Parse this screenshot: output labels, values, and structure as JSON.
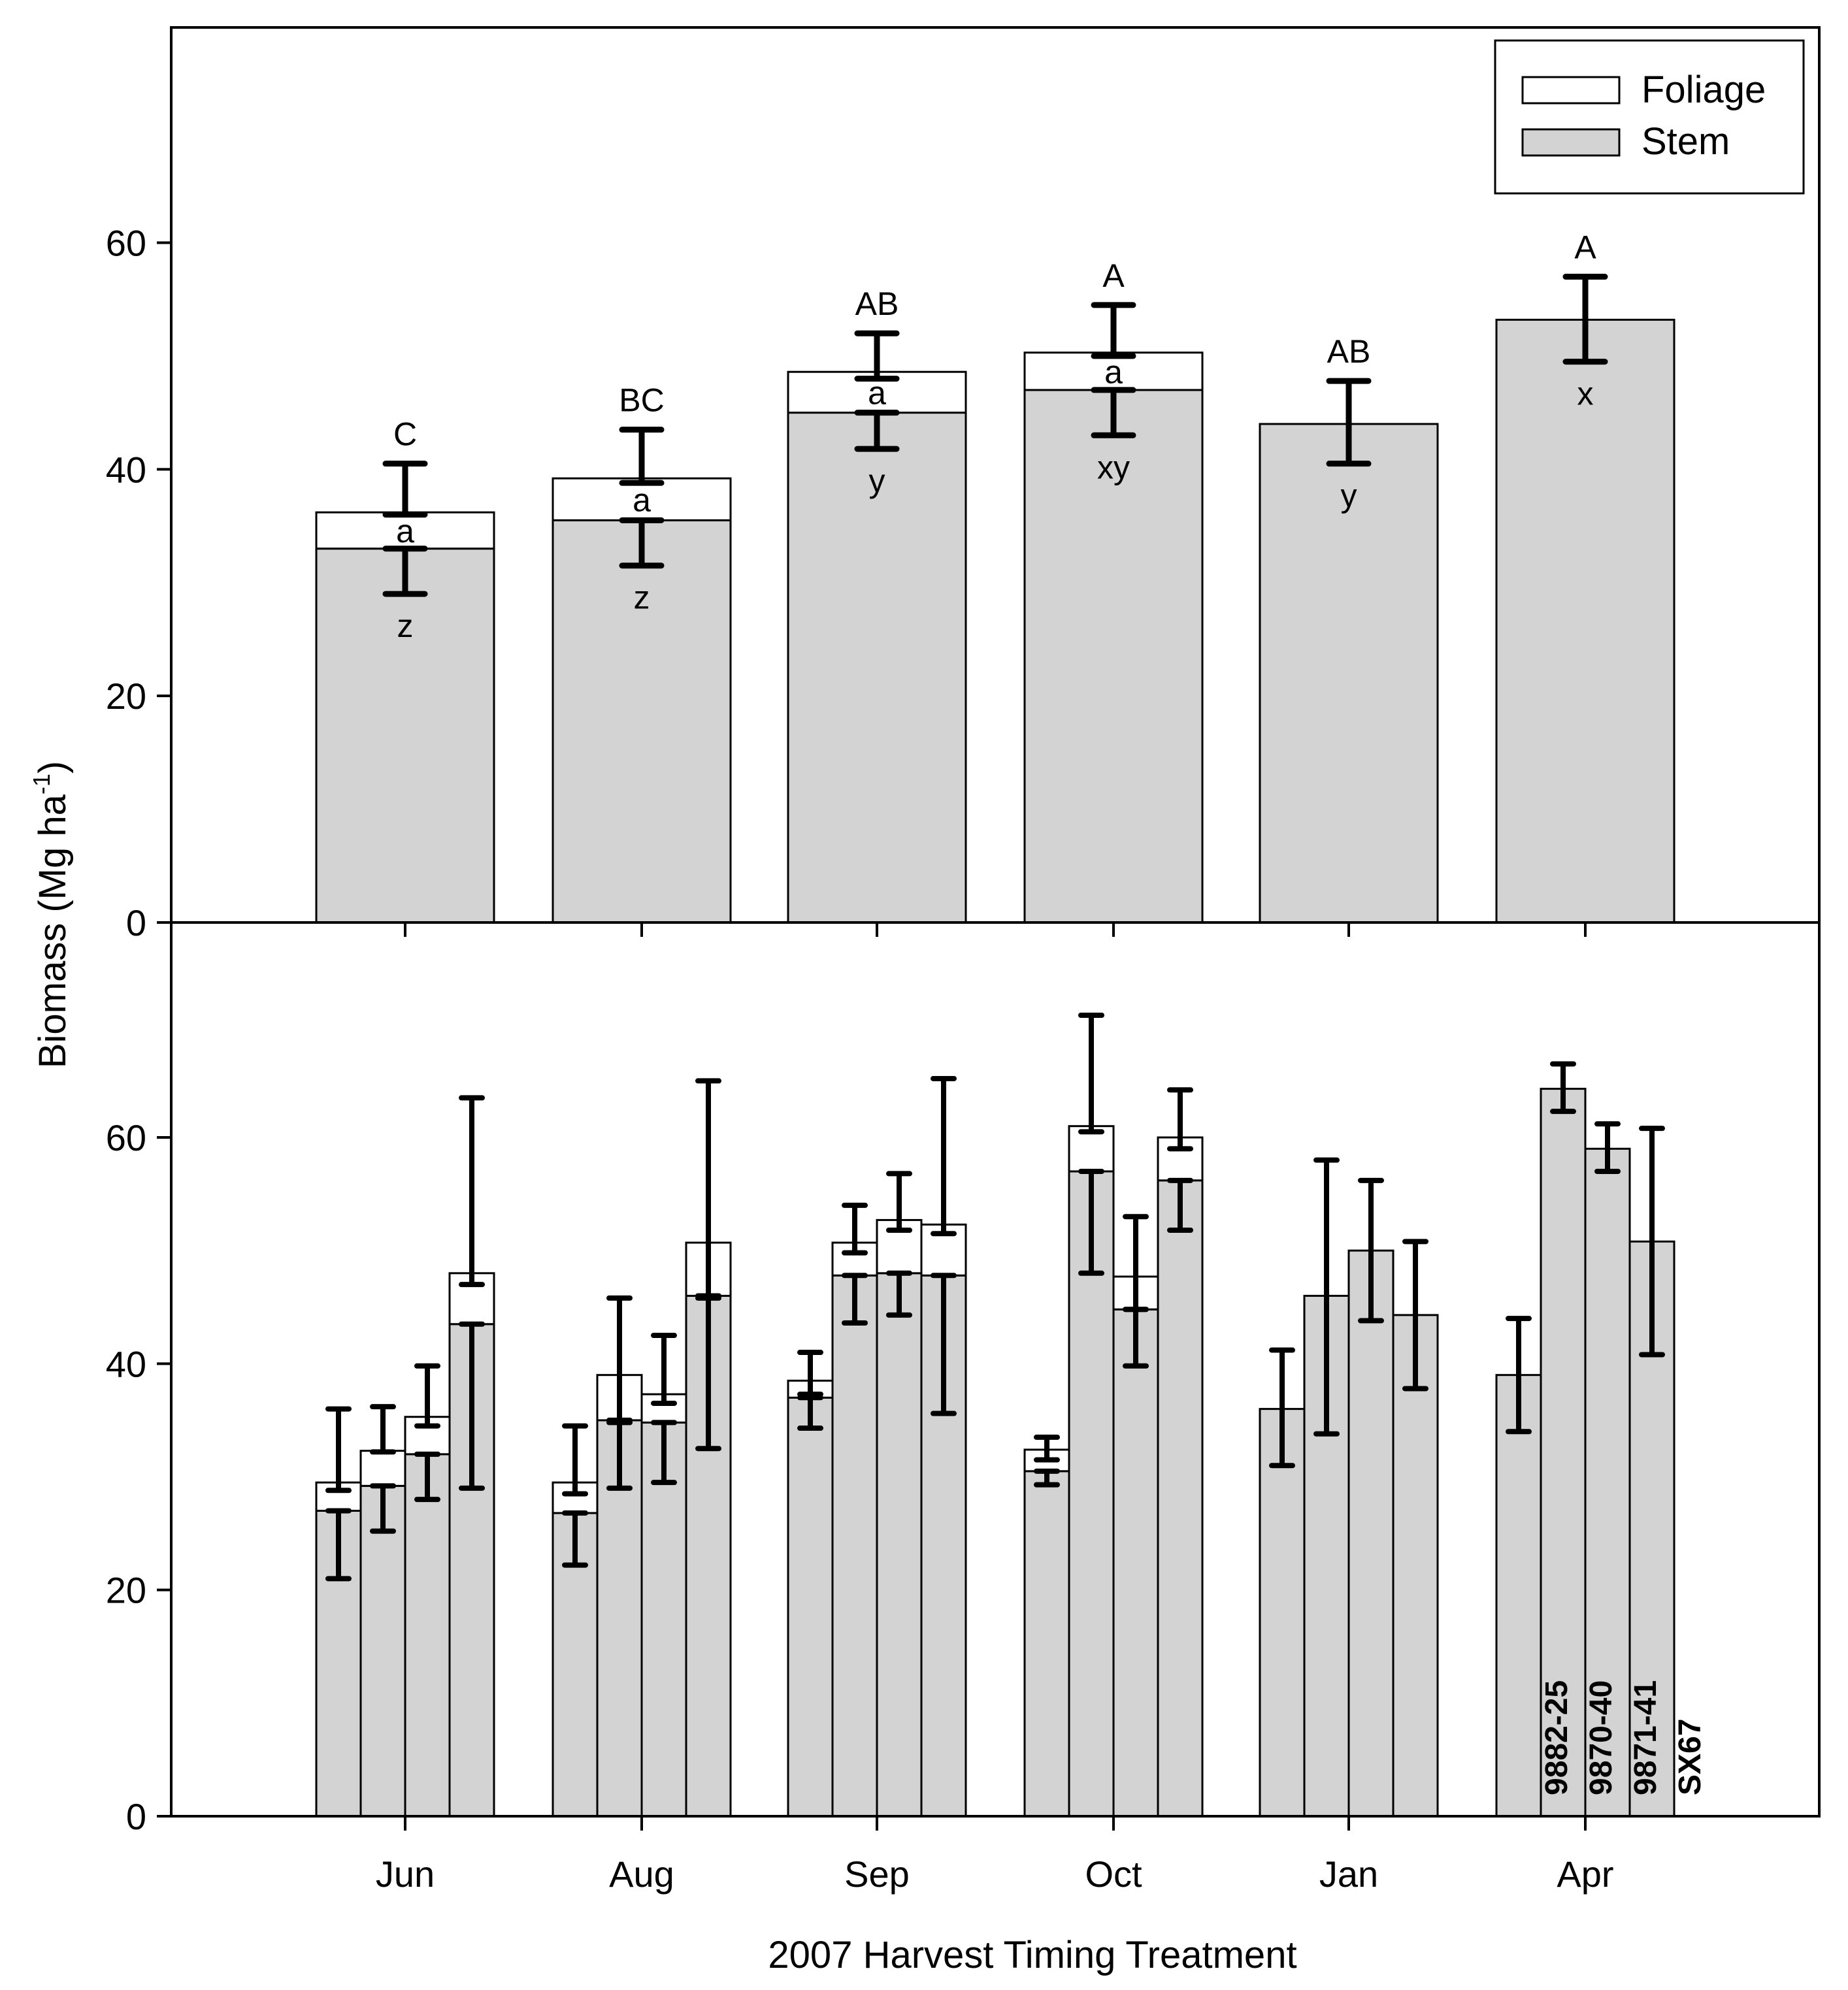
{
  "chart_data": {
    "type": "bar",
    "stacked": true,
    "xlabel": "2007 Harvest Timing Treatment",
    "ylabel": "Biomass (Mg ha",
    "ylabel_superscript": "-1",
    "ylabel_close": ")",
    "categories": [
      "Jun",
      "Aug",
      "Sep",
      "Oct",
      "Jan",
      "Apr"
    ],
    "legend": [
      {
        "name": "Foliage",
        "color": "#ffffff"
      },
      {
        "name": "Stem",
        "color": "#d3d3d3"
      }
    ],
    "legend_position": "top-right",
    "panels": [
      {
        "name": "top",
        "ylim": [
          0,
          79
        ],
        "yticks": [
          0,
          20,
          40,
          60
        ],
        "series": [
          {
            "name": "Stem",
            "values": [
              33.0,
              35.5,
              45.0,
              47.0,
              44.0,
              53.2
            ]
          },
          {
            "name": "Foliage",
            "values": [
              3.2,
              3.7,
              3.6,
              3.3,
              0,
              0
            ]
          }
        ],
        "total_errors": [
          {
            "low": 36.0,
            "high": 40.5
          },
          {
            "low": 38.8,
            "high": 43.5
          },
          {
            "low": 48.0,
            "high": 52.0
          },
          {
            "low": 50.0,
            "high": 54.5
          },
          {
            "low": 40.5,
            "high": 47.8
          },
          {
            "low": 49.5,
            "high": 57.0
          }
        ],
        "stem_errors": [
          {
            "low": 29.0,
            "high": 33.0
          },
          {
            "low": 31.5,
            "high": 35.5
          },
          {
            "low": 41.8,
            "high": 45.0
          },
          {
            "low": 43.0,
            "high": 47.0
          },
          null,
          null
        ],
        "total_letters": [
          "C",
          "BC",
          "AB",
          "A",
          "AB",
          "A"
        ],
        "foliage_letters": [
          "a",
          "a",
          "a",
          "a",
          "",
          ""
        ],
        "stem_letters": [
          "z",
          "z",
          "y",
          "xy",
          "y",
          "x"
        ]
      },
      {
        "name": "bottom",
        "ylim": [
          0,
          79
        ],
        "yticks": [
          0,
          20,
          40,
          60
        ],
        "clones": [
          "9882-25",
          "9870-40",
          "9871-41",
          "SX67"
        ],
        "stem": [
          [
            27.0,
            29.2,
            32.0,
            43.5
          ],
          [
            26.8,
            35.0,
            34.8,
            46.0
          ],
          [
            37.0,
            47.8,
            48.0,
            47.8
          ],
          [
            30.5,
            57.0,
            44.8,
            56.2
          ],
          [
            36.0,
            46.0,
            50.0,
            44.3
          ],
          [
            39.0,
            64.3,
            59.0,
            50.8
          ]
        ],
        "total": [
          [
            29.5,
            32.3,
            35.3,
            48.0
          ],
          [
            29.5,
            39.0,
            37.3,
            50.7
          ],
          [
            38.5,
            50.7,
            52.7,
            52.3
          ],
          [
            32.4,
            61.0,
            47.7,
            60.0
          ],
          [
            36.0,
            46.0,
            50.0,
            44.3
          ],
          [
            39.0,
            64.3,
            59.0,
            50.8
          ]
        ],
        "total_errors": [
          [
            [
              28.8,
              36.0
            ],
            [
              32.2,
              36.2
            ],
            [
              34.5,
              39.8
            ],
            [
              47.0,
              63.5
            ]
          ],
          [
            [
              28.5,
              34.5
            ],
            [
              34.8,
              45.8
            ],
            [
              36.5,
              42.5
            ],
            [
              45.8,
              65.0
            ]
          ],
          [
            [
              37.3,
              41.0
            ],
            [
              49.8,
              54.0
            ],
            [
              51.8,
              56.8
            ],
            [
              51.5,
              65.2
            ]
          ],
          [
            [
              31.5,
              33.5
            ],
            [
              60.5,
              70.8
            ],
            [
              44.8,
              53.0
            ],
            [
              59.0,
              64.2
            ]
          ],
          [
            [
              31.0,
              41.2
            ],
            [
              33.8,
              58.0
            ],
            [
              43.8,
              56.2
            ],
            [
              37.8,
              50.8
            ]
          ],
          [
            [
              34.0,
              44.0
            ],
            [
              62.3,
              66.5
            ],
            [
              57.0,
              61.2
            ],
            [
              40.8,
              60.8
            ]
          ]
        ],
        "stem_errors": [
          [
            [
              21.0,
              27.0
            ],
            [
              25.2,
              29.2
            ],
            [
              28.0,
              32.0
            ],
            [
              29.0,
              43.5
            ]
          ],
          [
            [
              22.2,
              26.8
            ],
            [
              29.0,
              35.0
            ],
            [
              29.5,
              34.8
            ],
            [
              32.5,
              46.0
            ]
          ],
          [
            [
              34.3,
              37.0
            ],
            [
              43.6,
              47.8
            ],
            [
              44.3,
              48.0
            ],
            [
              35.6,
              47.8
            ]
          ],
          [
            [
              29.3,
              30.5
            ],
            [
              48.0,
              57.0
            ],
            [
              39.8,
              44.8
            ],
            [
              51.8,
              56.2
            ]
          ],
          null,
          null
        ]
      }
    ]
  }
}
